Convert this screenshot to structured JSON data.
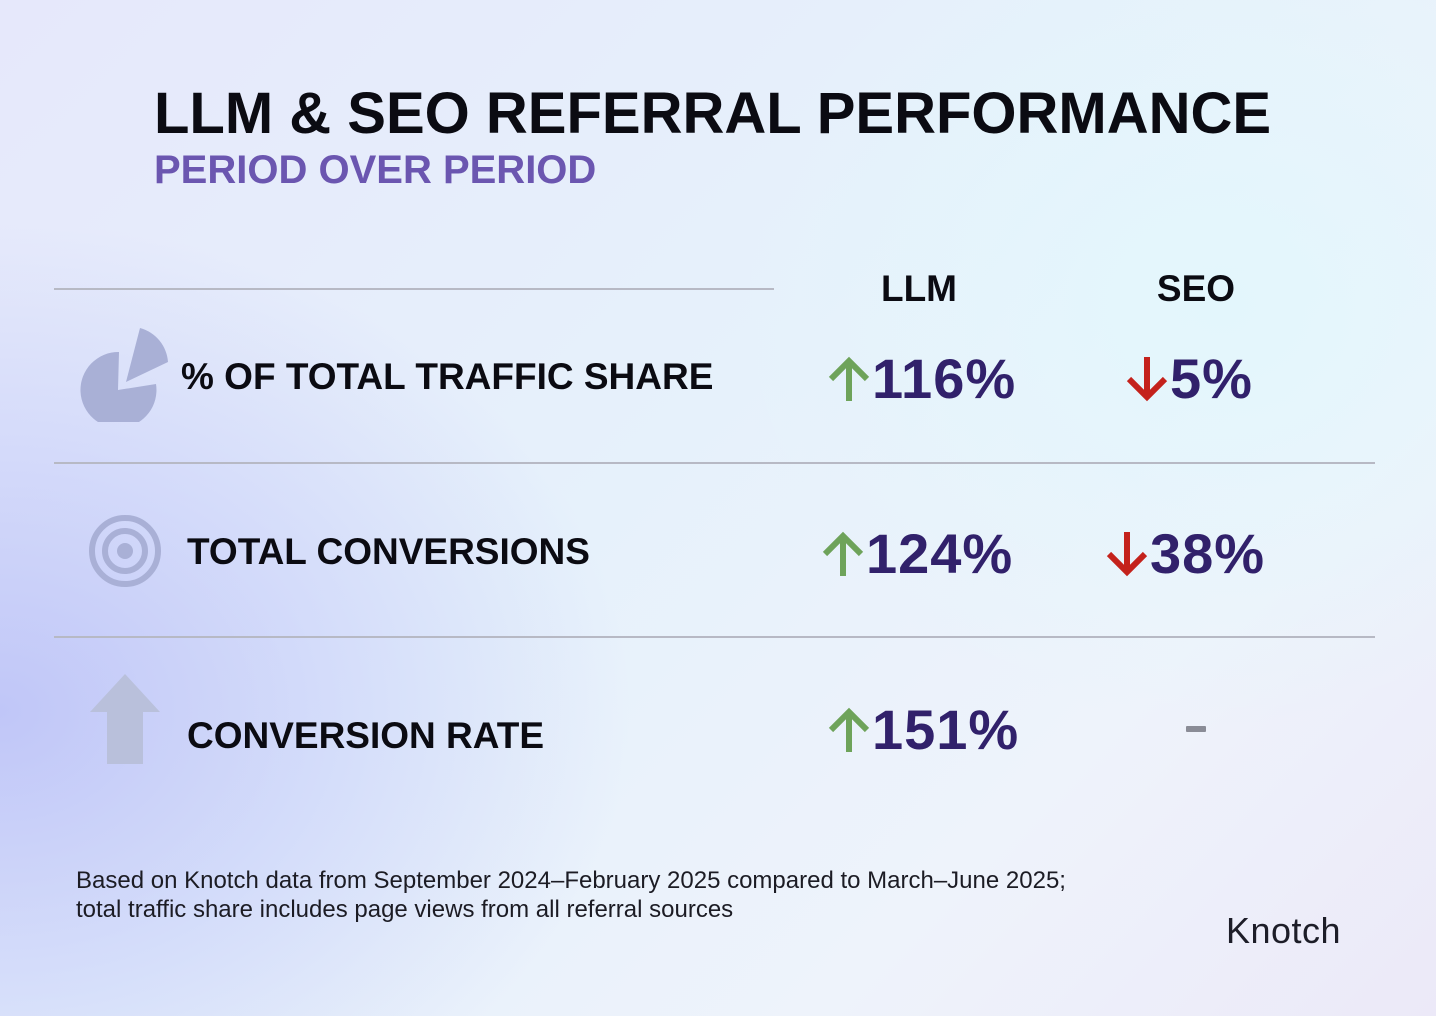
{
  "header": {
    "title": "LLM & SEO REFERRAL PERFORMANCE",
    "subtitle": "PERIOD OVER PERIOD"
  },
  "columns": {
    "llm": "LLM",
    "seo": "SEO"
  },
  "rows": [
    {
      "icon": "pie-chart-icon",
      "label": "% OF TOTAL TRAFFIC SHARE",
      "llm": {
        "direction": "up",
        "value": "116%"
      },
      "seo": {
        "direction": "down",
        "value": "5%"
      }
    },
    {
      "icon": "target-icon",
      "label": "TOTAL CONVERSIONS",
      "llm": {
        "direction": "up",
        "value": "124%"
      },
      "seo": {
        "direction": "down",
        "value": "38%"
      }
    },
    {
      "icon": "arrow-up-icon",
      "label": "CONVERSION RATE",
      "llm": {
        "direction": "up",
        "value": "151%"
      },
      "seo": {
        "direction": "none",
        "value": "-"
      }
    }
  ],
  "colors": {
    "up_arrow": "#6ea35a",
    "down_arrow": "#c4221c",
    "value_text": "#31216b",
    "subtitle": "#6b56b0",
    "icon_fill": "#a9b0d6"
  },
  "footnote": "Based on Knotch data from September 2024–February 2025 compared to March–June 2025; total traffic share includes page views from all referral sources",
  "logo": "Knotch"
}
